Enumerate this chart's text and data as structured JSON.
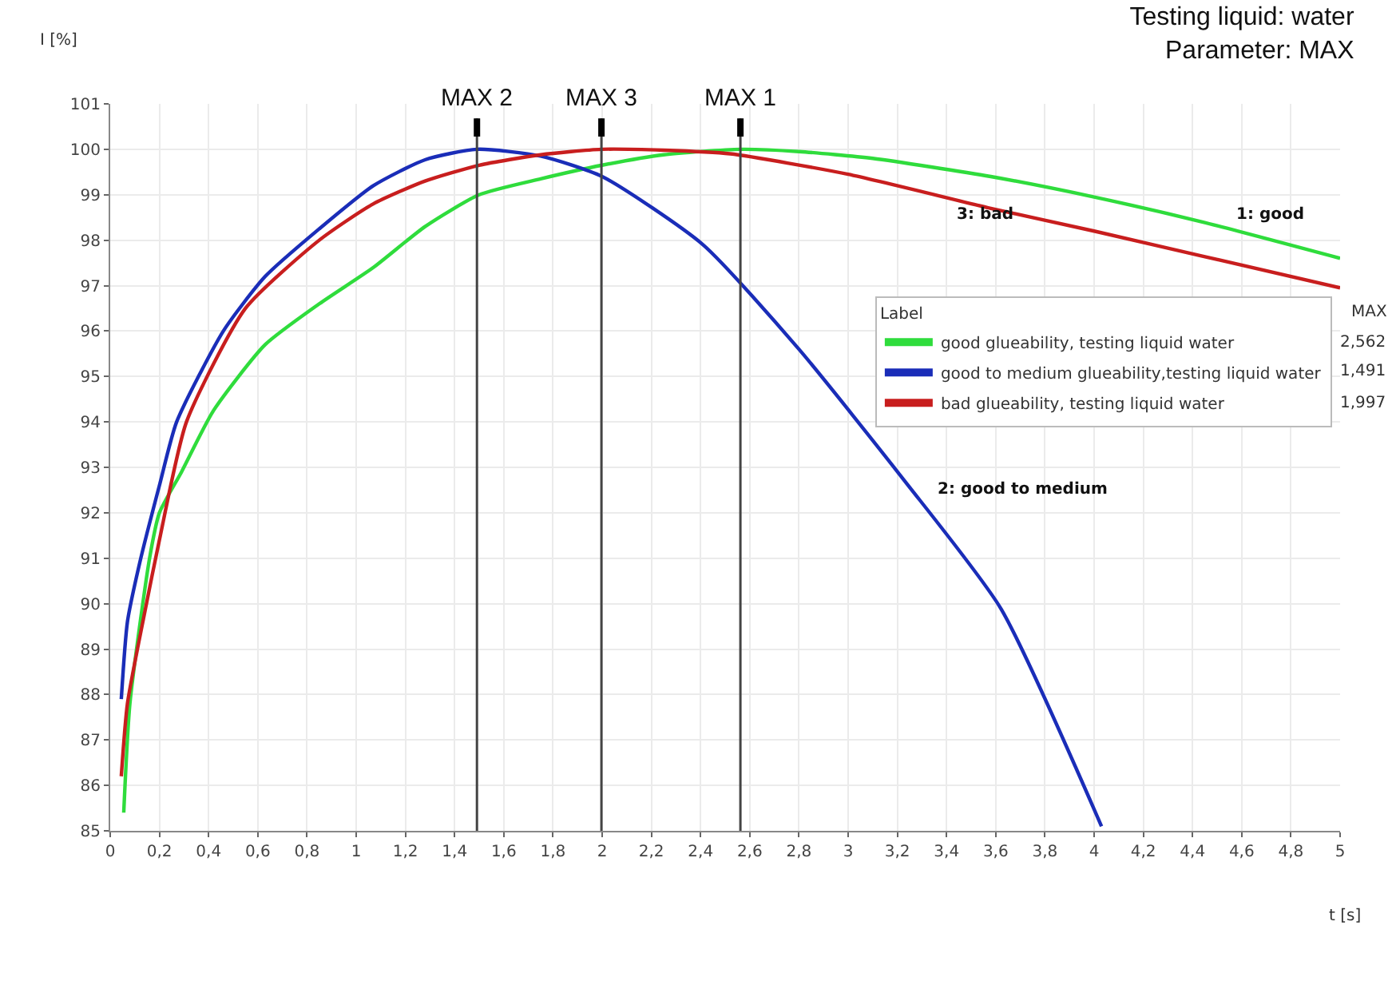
{
  "chart_data": {
    "type": "line",
    "title": "Testing liquid: water\nParameter: MAX",
    "xlabel": "t [s]",
    "ylabel": "I [%]",
    "legend_title": "Label",
    "series": [
      {
        "name": "good glueability, testing liquid water",
        "color": "#2fdc3c",
        "x": [
          0.055,
          0.08,
          0.16,
          0.2,
          0.29,
          0.42,
          0.63,
          0.85,
          1.07,
          1.28,
          1.5,
          1.75,
          2.0,
          2.25,
          2.562,
          2.8,
          3.1,
          3.58,
          4.0,
          4.44,
          5.0
        ],
        "values": [
          85.4,
          87.8,
          91.0,
          92.0,
          92.9,
          94.25,
          95.7,
          96.6,
          97.4,
          98.3,
          99.0,
          99.35,
          99.65,
          99.88,
          100.0,
          99.95,
          99.8,
          99.4,
          98.95,
          98.4,
          97.6
        ]
      },
      {
        "name": "good to medium glueability,testing liquid water",
        "color": "#1a2db8",
        "x": [
          0.045,
          0.07,
          0.12,
          0.2,
          0.27,
          0.46,
          0.63,
          0.85,
          1.07,
          1.28,
          1.491,
          1.75,
          2.0,
          2.41,
          2.8,
          3.23,
          3.62,
          4.03
        ],
        "values": [
          87.9,
          89.6,
          90.9,
          92.6,
          94.0,
          96.0,
          97.2,
          98.25,
          99.2,
          99.77,
          100.0,
          99.85,
          99.4,
          97.9,
          95.6,
          92.7,
          89.9,
          85.1
        ]
      },
      {
        "name": "bad glueability, testing liquid water",
        "color": "#c81e1e",
        "x": [
          0.045,
          0.07,
          0.14,
          0.2,
          0.31,
          0.55,
          0.85,
          1.07,
          1.28,
          1.5,
          1.75,
          1.997,
          2.25,
          2.52,
          3.0,
          3.58,
          4.0,
          4.44,
          5.0
        ],
        "values": [
          86.2,
          87.8,
          89.8,
          91.4,
          94.0,
          96.5,
          98.0,
          98.8,
          99.3,
          99.65,
          99.88,
          100.0,
          99.98,
          99.9,
          99.45,
          98.7,
          98.2,
          97.65,
          96.95
        ]
      }
    ],
    "xlim": [
      0,
      5
    ],
    "ylim": [
      85,
      101
    ],
    "xticks": [
      0,
      {
        "value": 0.2,
        "label": "0,2"
      },
      {
        "value": 0.4,
        "label": "0,4"
      },
      {
        "value": 0.6,
        "label": "0,6"
      },
      {
        "value": 0.8,
        "label": "0,8"
      },
      1,
      {
        "value": 1.2,
        "label": "1,2"
      },
      {
        "value": 1.4,
        "label": "1,4"
      },
      {
        "value": 1.6,
        "label": "1,6"
      },
      {
        "value": 1.8,
        "label": "1,8"
      },
      2,
      {
        "value": 2.2,
        "label": "2,2"
      },
      {
        "value": 2.4,
        "label": "2,4"
      },
      {
        "value": 2.6,
        "label": "2,6"
      },
      {
        "value": 2.8,
        "label": "2,8"
      },
      3,
      {
        "value": 3.2,
        "label": "3,2"
      },
      {
        "value": 3.4,
        "label": "3,4"
      },
      {
        "value": 3.6,
        "label": "3,6"
      },
      {
        "value": 3.8,
        "label": "3,8"
      },
      4,
      {
        "value": 4.2,
        "label": "4,2"
      },
      {
        "value": 4.4,
        "label": "4,4"
      },
      {
        "value": 4.6,
        "label": "4,6"
      },
      {
        "value": 4.8,
        "label": "4,8"
      },
      5
    ],
    "yticks": [
      85,
      86,
      87,
      88,
      89,
      90,
      91,
      92,
      93,
      94,
      95,
      96,
      97,
      98,
      99,
      100,
      101
    ],
    "ref_lines": [
      {
        "axis": "x",
        "value": 1.491,
        "label": "MAX 2",
        "color": "#444444"
      },
      {
        "axis": "x",
        "value": 1.997,
        "label": "MAX 3",
        "color": "#444444"
      },
      {
        "axis": "x",
        "value": 2.562,
        "label": "MAX 1",
        "color": "#444444"
      }
    ],
    "annotations": [
      "1: good",
      "3: bad",
      "2: good to medium",
      "MAX",
      "2,562",
      "1,491",
      "1,997"
    ],
    "grid": true,
    "legend": "right",
    "marker": "none",
    "line_style": "solid"
  }
}
